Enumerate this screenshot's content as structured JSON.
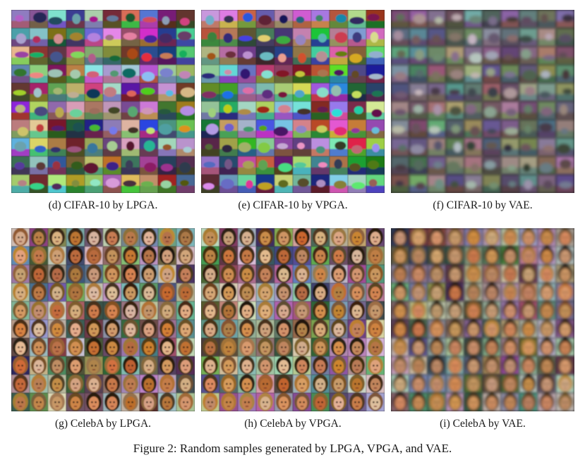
{
  "panels": [
    {
      "id": "d",
      "caption": "(d) CIFAR-10 by LPGA.",
      "kind": "cifar",
      "style": "sharp"
    },
    {
      "id": "e",
      "caption": "(e) CIFAR-10 by VPGA.",
      "kind": "cifar",
      "style": "sharp"
    },
    {
      "id": "f",
      "caption": "(f) CIFAR-10 by VAE.",
      "kind": "cifar",
      "style": "blurry"
    },
    {
      "id": "g",
      "caption": "(g) CelebA by LPGA.",
      "kind": "celeba",
      "style": "sharp"
    },
    {
      "id": "h",
      "caption": "(h) CelebA by VPGA.",
      "kind": "celeba",
      "style": "sharp"
    },
    {
      "id": "i",
      "caption": "(i) CelebA by VAE.",
      "kind": "celeba",
      "style": "blurry"
    }
  ],
  "figure_caption": "Figure 2: Random samples generated by LPGA, VPGA, and VAE."
}
